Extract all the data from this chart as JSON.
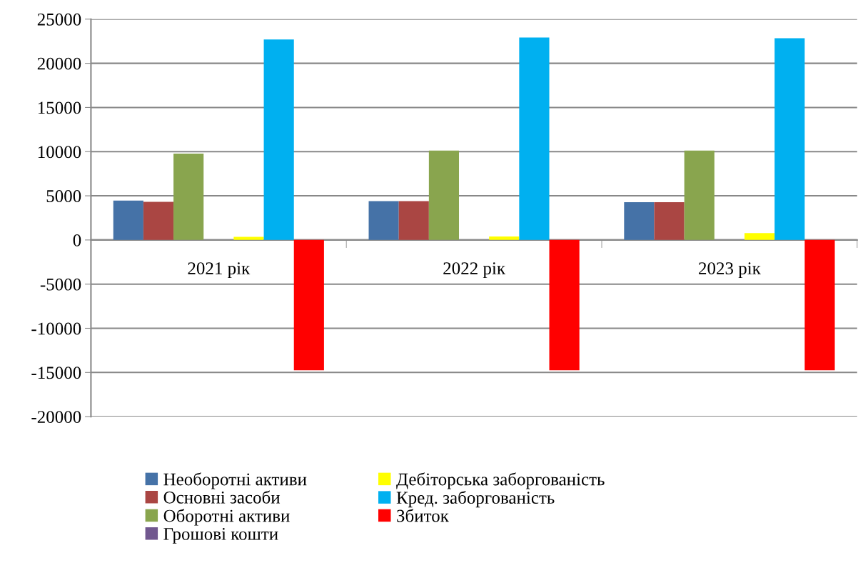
{
  "chart_data": {
    "type": "bar",
    "categories": [
      "2021 рік",
      "2022 рік",
      "2023 рік"
    ],
    "series": [
      {
        "name": "Необоротні активи",
        "color": "#4572a7",
        "values": [
          4460,
          4400,
          4270
        ]
      },
      {
        "name": "Основні засоби",
        "color": "#aa4643",
        "values": [
          4320,
          4400,
          4270
        ]
      },
      {
        "name": "Оборотні активи",
        "color": "#89a54e",
        "values": [
          9780,
          10130,
          10130
        ]
      },
      {
        "name": "Грошові кошти",
        "color": "#71588f",
        "values": [
          0,
          0,
          0
        ]
      },
      {
        "name": "Дебіторська заборгованість",
        "color": "#ffff00",
        "values": [
          350,
          400,
          780
        ]
      },
      {
        "name": "Кред. заборгованість",
        "color": "#00b0f0",
        "values": [
          22700,
          22920,
          22840
        ]
      },
      {
        "name": "Збиток",
        "color": "#ff0000",
        "values": [
          -14750,
          -14750,
          -14750
        ]
      }
    ],
    "ylim": [
      -20000,
      25000
    ],
    "yticks": [
      {
        "value": -20000,
        "label": "-20000"
      },
      {
        "value": -15000,
        "label": "-15000"
      },
      {
        "value": -10000,
        "label": "-10000"
      },
      {
        "value": -5000,
        "label": "-5000"
      },
      0,
      5000,
      10000,
      15000,
      20000,
      25000
    ],
    "grid": "y",
    "legend": "bottom"
  }
}
